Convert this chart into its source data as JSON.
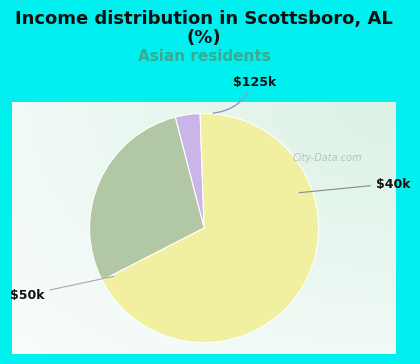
{
  "title_line1": "Income distribution in Scottsboro, AL",
  "title_line2": "(%)",
  "subtitle": "Asian residents",
  "slices": [
    {
      "label": "$125k",
      "value": 3.5,
      "color": "#c9b5e8"
    },
    {
      "label": "$40k",
      "value": 28.5,
      "color": "#b2c8a5"
    },
    {
      "label": "$50k",
      "value": 68.0,
      "color": "#f0f0a0"
    }
  ],
  "bg_cyan": "#00efef",
  "bg_chart_tl": "#ddf0e8",
  "bg_chart_br": "#f0f8f4",
  "title_color": "#111111",
  "subtitle_color": "#3aaa90",
  "label_color": "#111111",
  "watermark": "City-Data.com",
  "startangle": 92,
  "figure_width": 4.0,
  "figure_height": 3.5,
  "title_fontsize": 13,
  "subtitle_fontsize": 11,
  "label_fontsize": 9
}
